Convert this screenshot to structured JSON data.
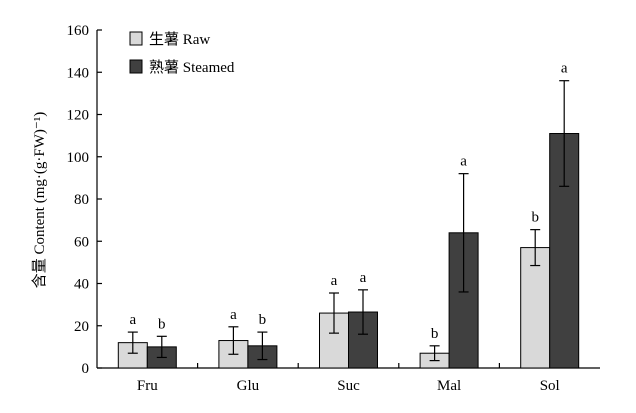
{
  "chart_data": {
    "type": "bar",
    "ylabel": "含量 Content (mg·(g·FW)⁻¹)",
    "ylim": [
      0,
      160
    ],
    "yticks": [
      0,
      20,
      40,
      60,
      80,
      100,
      120,
      140,
      160
    ],
    "categories": [
      "Fru",
      "Glu",
      "Suc",
      "Mal",
      "Sol"
    ],
    "legend_position": "top-left",
    "grid": false,
    "series": [
      {
        "name": "生薯 Raw",
        "color": "#d9d9d9",
        "values": [
          12,
          13,
          26,
          7,
          57
        ],
        "errors": [
          5,
          6.5,
          9.5,
          3.5,
          8.5
        ],
        "letters": [
          "a",
          "a",
          "a",
          "b",
          "b"
        ]
      },
      {
        "name": "熟薯 Steamed",
        "color": "#404040",
        "values": [
          10,
          10.5,
          26.5,
          64,
          111
        ],
        "errors": [
          5,
          6.5,
          10.5,
          28,
          25
        ],
        "letters": [
          "b",
          "b",
          "a",
          "a",
          "a"
        ]
      }
    ]
  }
}
